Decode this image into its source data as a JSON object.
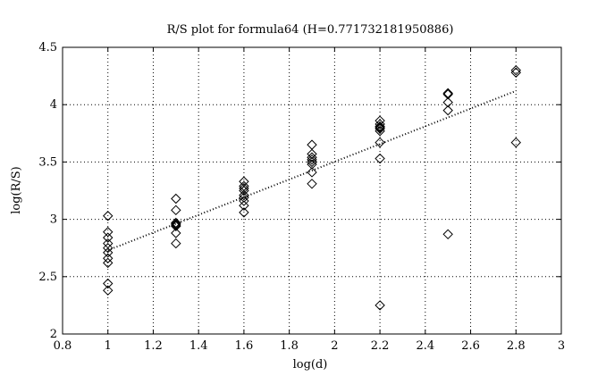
{
  "chart_data": {
    "type": "scatter",
    "title": "R/S plot for formula64 (H=0.771732181950886)",
    "xlabel": "log(d)",
    "ylabel": "log(R/S)",
    "xlim": [
      0.8,
      3
    ],
    "ylim": [
      2,
      4.5
    ],
    "xticks": [
      "0.8",
      "1",
      "1.2",
      "1.4",
      "1.6",
      "1.8",
      "2",
      "2.2",
      "2.4",
      "2.6",
      "2.8",
      "3"
    ],
    "yticks": [
      "2",
      "2.5",
      "3",
      "3.5",
      "4",
      "4.5"
    ],
    "grid": true,
    "series": [
      {
        "marker": "diamond",
        "points": [
          [
            1.0,
            3.03
          ],
          [
            1.0,
            2.89
          ],
          [
            1.0,
            2.84
          ],
          [
            1.0,
            2.79
          ],
          [
            1.0,
            2.75
          ],
          [
            1.0,
            2.71
          ],
          [
            1.0,
            2.66
          ],
          [
            1.0,
            2.62
          ],
          [
            1.0,
            2.44
          ],
          [
            1.0,
            2.38
          ],
          [
            1.3,
            3.18
          ],
          [
            1.3,
            3.08
          ],
          [
            1.3,
            2.97
          ],
          [
            1.3,
            2.96
          ],
          [
            1.3,
            2.95
          ],
          [
            1.3,
            2.94
          ],
          [
            1.3,
            2.88
          ],
          [
            1.3,
            2.79
          ],
          [
            1.6,
            3.33
          ],
          [
            1.6,
            3.29
          ],
          [
            1.6,
            3.27
          ],
          [
            1.6,
            3.25
          ],
          [
            1.6,
            3.21
          ],
          [
            1.6,
            3.19
          ],
          [
            1.6,
            3.16
          ],
          [
            1.6,
            3.12
          ],
          [
            1.6,
            3.06
          ],
          [
            1.9,
            3.65
          ],
          [
            1.9,
            3.57
          ],
          [
            1.9,
            3.54
          ],
          [
            1.9,
            3.52
          ],
          [
            1.9,
            3.5
          ],
          [
            1.9,
            3.48
          ],
          [
            1.9,
            3.41
          ],
          [
            1.9,
            3.31
          ],
          [
            2.2,
            3.86
          ],
          [
            2.2,
            3.83
          ],
          [
            2.2,
            3.81
          ],
          [
            2.2,
            3.8
          ],
          [
            2.2,
            3.79
          ],
          [
            2.2,
            3.77
          ],
          [
            2.2,
            3.67
          ],
          [
            2.2,
            3.53
          ],
          [
            2.2,
            2.25
          ],
          [
            2.5,
            4.1
          ],
          [
            2.5,
            4.09
          ],
          [
            2.5,
            4.02
          ],
          [
            2.5,
            3.95
          ],
          [
            2.5,
            2.87
          ],
          [
            2.8,
            4.3
          ],
          [
            2.8,
            4.28
          ],
          [
            2.8,
            3.67
          ]
        ]
      },
      {
        "style": "dotted-line",
        "x": [
          1.0,
          2.8
        ],
        "y": [
          2.73,
          4.12
        ]
      }
    ]
  }
}
